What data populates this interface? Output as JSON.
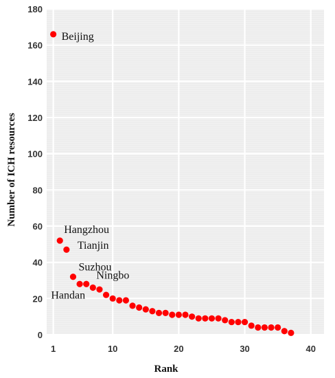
{
  "chart_data": {
    "type": "scatter",
    "xlabel": "Rank",
    "ylabel": "Number of ICH resources",
    "xlim": [
      0,
      42
    ],
    "ylim": [
      0,
      180
    ],
    "xticks": [
      1,
      10,
      20,
      30,
      40
    ],
    "yticks": [
      0,
      20,
      40,
      60,
      80,
      100,
      120,
      140,
      160,
      180
    ],
    "grid": true,
    "marker_color": "#ff0000",
    "background_color": "#ebebeb",
    "grid_color": "#ffffff",
    "points": [
      {
        "x": 1,
        "y": 166
      },
      {
        "x": 2,
        "y": 52
      },
      {
        "x": 3,
        "y": 47
      },
      {
        "x": 4,
        "y": 32
      },
      {
        "x": 5,
        "y": 28
      },
      {
        "x": 6,
        "y": 28
      },
      {
        "x": 7,
        "y": 26
      },
      {
        "x": 8,
        "y": 25
      },
      {
        "x": 9,
        "y": 22
      },
      {
        "x": 10,
        "y": 20
      },
      {
        "x": 11,
        "y": 19
      },
      {
        "x": 12,
        "y": 19
      },
      {
        "x": 13,
        "y": 16
      },
      {
        "x": 14,
        "y": 15
      },
      {
        "x": 15,
        "y": 14
      },
      {
        "x": 16,
        "y": 13
      },
      {
        "x": 17,
        "y": 12
      },
      {
        "x": 18,
        "y": 12
      },
      {
        "x": 19,
        "y": 11
      },
      {
        "x": 20,
        "y": 11
      },
      {
        "x": 21,
        "y": 11
      },
      {
        "x": 22,
        "y": 10
      },
      {
        "x": 23,
        "y": 9
      },
      {
        "x": 24,
        "y": 9
      },
      {
        "x": 25,
        "y": 9
      },
      {
        "x": 26,
        "y": 9
      },
      {
        "x": 27,
        "y": 8
      },
      {
        "x": 28,
        "y": 7
      },
      {
        "x": 29,
        "y": 7
      },
      {
        "x": 30,
        "y": 7
      },
      {
        "x": 31,
        "y": 5
      },
      {
        "x": 32,
        "y": 4
      },
      {
        "x": 33,
        "y": 4
      },
      {
        "x": 34,
        "y": 4
      },
      {
        "x": 35,
        "y": 4
      },
      {
        "x": 36,
        "y": 2
      },
      {
        "x": 37,
        "y": 1
      }
    ],
    "annotations": [
      {
        "text": "Beijing",
        "point": 1
      },
      {
        "text": "Hangzhou",
        "point": 2
      },
      {
        "text": "Tianjin",
        "point": 3
      },
      {
        "text": "Suzhou",
        "point": 4
      },
      {
        "text": "Ningbo",
        "point": 7
      },
      {
        "text": "Handan",
        "point": 5
      }
    ]
  }
}
